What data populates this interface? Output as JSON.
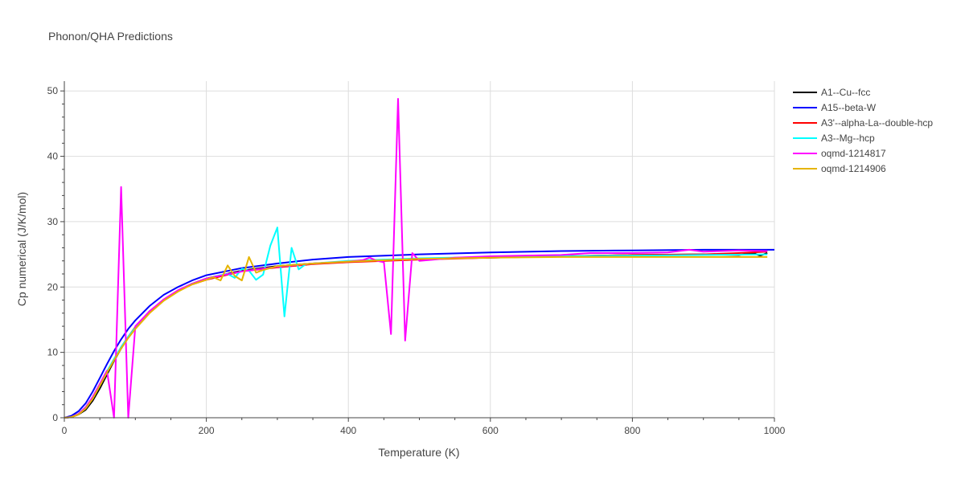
{
  "chart_data": {
    "type": "line",
    "title": "Phonon/QHA Predictions",
    "xlabel": "Temperature (K)",
    "ylabel": "Cp numerical (J/K/mol)",
    "xlim": [
      0,
      1000
    ],
    "ylim": [
      0,
      51.5
    ],
    "xticks": [
      0,
      200,
      400,
      600,
      800,
      1000
    ],
    "yticks": [
      0,
      10,
      20,
      30,
      40,
      50
    ],
    "grid": true,
    "legend_position": "top-right",
    "series": [
      {
        "name": "A1--Cu--fcc",
        "color": "#000000",
        "x": [
          0,
          10,
          20,
          30,
          40,
          50,
          60,
          70,
          80,
          90,
          100,
          120,
          140,
          160,
          180,
          200,
          250,
          300,
          350,
          400,
          500,
          600,
          700,
          800,
          900,
          950,
          970,
          980,
          990
        ],
        "y": [
          0,
          0.1,
          0.5,
          1.2,
          2.6,
          4.5,
          6.6,
          8.7,
          10.6,
          12.3,
          13.8,
          16.3,
          18.0,
          19.4,
          20.5,
          21.3,
          22.5,
          23.2,
          23.6,
          23.9,
          24.3,
          24.5,
          24.7,
          24.9,
          25.0,
          24.9,
          25.2,
          24.8,
          25.2
        ]
      },
      {
        "name": "A15--beta-W",
        "color": "#0000ff",
        "x": [
          0,
          10,
          20,
          30,
          40,
          50,
          60,
          70,
          80,
          90,
          100,
          120,
          140,
          160,
          180,
          200,
          250,
          300,
          350,
          400,
          500,
          600,
          700,
          800,
          900,
          1000
        ],
        "y": [
          0,
          0.3,
          1.0,
          2.2,
          4.0,
          6.1,
          8.2,
          10.2,
          12.0,
          13.6,
          14.9,
          17.1,
          18.8,
          20.0,
          21.0,
          21.8,
          22.9,
          23.6,
          24.2,
          24.6,
          25.0,
          25.3,
          25.5,
          25.6,
          25.7,
          25.7
        ]
      },
      {
        "name": "A3'--alpha-La--double-hcp",
        "color": "#ff0000",
        "x": [
          0,
          10,
          20,
          30,
          40,
          50,
          60,
          70,
          80,
          90,
          100,
          120,
          140,
          160,
          180,
          200,
          250,
          300,
          350,
          400,
          500,
          600,
          700,
          800,
          900,
          950,
          990
        ],
        "y": [
          0,
          0.1,
          0.6,
          1.5,
          3.0,
          5.0,
          7.0,
          8.9,
          10.8,
          12.4,
          13.9,
          16.2,
          18.0,
          19.4,
          20.4,
          21.1,
          22.4,
          23.0,
          23.5,
          23.8,
          24.2,
          24.5,
          24.7,
          24.9,
          25.0,
          25.2,
          25.4
        ]
      },
      {
        "name": "A3--Mg--hcp",
        "color": "#00ffff",
        "x": [
          0,
          10,
          20,
          30,
          40,
          50,
          60,
          70,
          80,
          90,
          100,
          120,
          140,
          160,
          180,
          200,
          220,
          230,
          240,
          250,
          260,
          270,
          280,
          290,
          300,
          310,
          320,
          330,
          340,
          350,
          400,
          500,
          600,
          700,
          800,
          900,
          990
        ],
        "y": [
          0,
          0.1,
          0.6,
          1.6,
          3.1,
          5.1,
          7.1,
          9.0,
          10.8,
          12.4,
          13.8,
          16.2,
          18.0,
          19.4,
          20.5,
          21.2,
          21.8,
          22.0,
          21.4,
          22.8,
          22.5,
          21.1,
          21.9,
          26.3,
          29.1,
          15.5,
          26.0,
          22.7,
          23.5,
          23.6,
          24.0,
          24.4,
          24.6,
          24.7,
          24.8,
          24.9,
          25.0
        ]
      },
      {
        "name": "oqmd-1214817",
        "color": "#ff00ff",
        "x": [
          0,
          10,
          20,
          30,
          40,
          50,
          60,
          70,
          80,
          90,
          100,
          120,
          140,
          160,
          180,
          200,
          250,
          300,
          350,
          400,
          420,
          430,
          440,
          450,
          460,
          470,
          480,
          490,
          500,
          550,
          600,
          700,
          740,
          800,
          850,
          880,
          900,
          950,
          990
        ],
        "y": [
          0,
          0.1,
          0.6,
          1.6,
          3.2,
          5.2,
          7.2,
          0,
          35.3,
          0,
          14.0,
          16.3,
          18.1,
          19.5,
          20.5,
          21.3,
          22.4,
          23.1,
          23.6,
          23.9,
          24.1,
          24.5,
          24.0,
          23.8,
          12.8,
          48.8,
          11.8,
          25.2,
          24.0,
          24.5,
          24.7,
          24.9,
          25.2,
          25.2,
          25.3,
          25.7,
          25.4,
          25.6,
          25.5
        ]
      },
      {
        "name": "oqmd-1214906",
        "color": "#e6b400",
        "x": [
          0,
          10,
          20,
          30,
          40,
          50,
          60,
          70,
          80,
          90,
          100,
          120,
          140,
          160,
          180,
          200,
          210,
          220,
          230,
          240,
          250,
          260,
          270,
          280,
          300,
          350,
          400,
          500,
          600,
          700,
          800,
          900,
          990
        ],
        "y": [
          0,
          0.1,
          0.5,
          1.4,
          2.9,
          4.9,
          6.9,
          8.8,
          10.6,
          12.2,
          13.6,
          16.0,
          17.9,
          19.3,
          20.4,
          21.1,
          21.5,
          21.0,
          23.3,
          21.7,
          21.0,
          24.6,
          22.2,
          22.6,
          23.2,
          23.6,
          23.9,
          24.3,
          24.5,
          24.6,
          24.6,
          24.6,
          24.6
        ]
      }
    ]
  }
}
